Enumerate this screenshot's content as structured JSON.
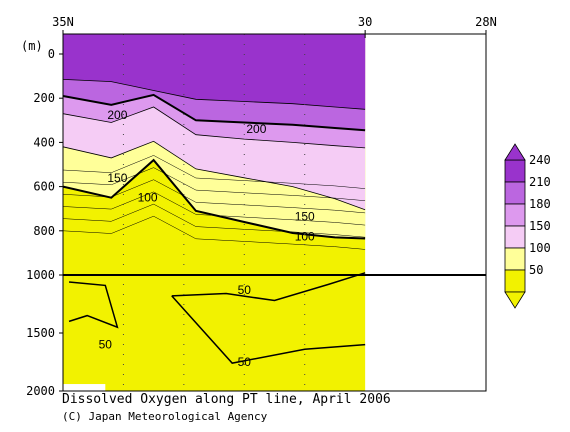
{
  "chart_data": {
    "type": "contour",
    "title": "Dissolved Oxygen along PT line, April 2006",
    "credit": "(C) Japan Meteorological Agency",
    "x_axis": {
      "tick_labels": [
        {
          "lat": 35,
          "label": "35N"
        },
        {
          "lat": 30,
          "label": "30"
        },
        {
          "lat": 28,
          "label": "28N"
        }
      ],
      "range": [
        35,
        28
      ],
      "data_extent": [
        35,
        30
      ]
    },
    "y_axis": {
      "unit_label": "(m)",
      "upper_ticks": [
        "0",
        "200",
        "400",
        "600",
        "800",
        "1000"
      ],
      "lower_ticks": [
        "1500",
        "2000"
      ],
      "upper_range": [
        0,
        1000
      ],
      "lower_range": [
        1000,
        2000
      ],
      "inverted": true,
      "scale_break": 1000
    },
    "colorbar": {
      "levels": [
        "240",
        "210",
        "180",
        "150",
        "100",
        "50"
      ],
      "colors": [
        "#9933cc",
        "#bb66e0",
        "#dd99ee",
        "#f5ccf5",
        "#ffff99",
        "#f2f200"
      ]
    },
    "contour_labels": [
      {
        "value": "200",
        "lat": 34.1,
        "depth": 275
      },
      {
        "value": "200",
        "lat": 31.8,
        "depth": 340
      },
      {
        "value": "150",
        "lat": 34.1,
        "depth": 560
      },
      {
        "value": "100",
        "lat": 33.6,
        "depth": 650
      },
      {
        "value": "150",
        "lat": 31.0,
        "depth": 735
      },
      {
        "value": "100",
        "lat": 31.0,
        "depth": 825
      },
      {
        "value": "50",
        "lat": 32.0,
        "depth": 1130
      },
      {
        "value": "50",
        "lat": 34.3,
        "depth": 1600
      },
      {
        "value": "50",
        "lat": 32.0,
        "depth": 1750
      }
    ],
    "series": [
      {
        "value": 210,
        "depths": [
          115,
          125,
          165,
          205,
          215,
          225,
          240,
          250
        ]
      },
      {
        "value": 200,
        "depths": [
          190,
          230,
          185,
          300,
          310,
          320,
          335,
          345
        ]
      },
      {
        "value": 180,
        "depths": [
          270,
          310,
          240,
          365,
          385,
          400,
          415,
          425
        ]
      },
      {
        "value": 150,
        "depths": [
          420,
          470,
          395,
          520,
          560,
          600,
          655,
          705
        ]
      },
      {
        "value": 100,
        "depths": [
          600,
          650,
          480,
          710,
          760,
          810,
          830,
          835
        ]
      }
    ]
  }
}
